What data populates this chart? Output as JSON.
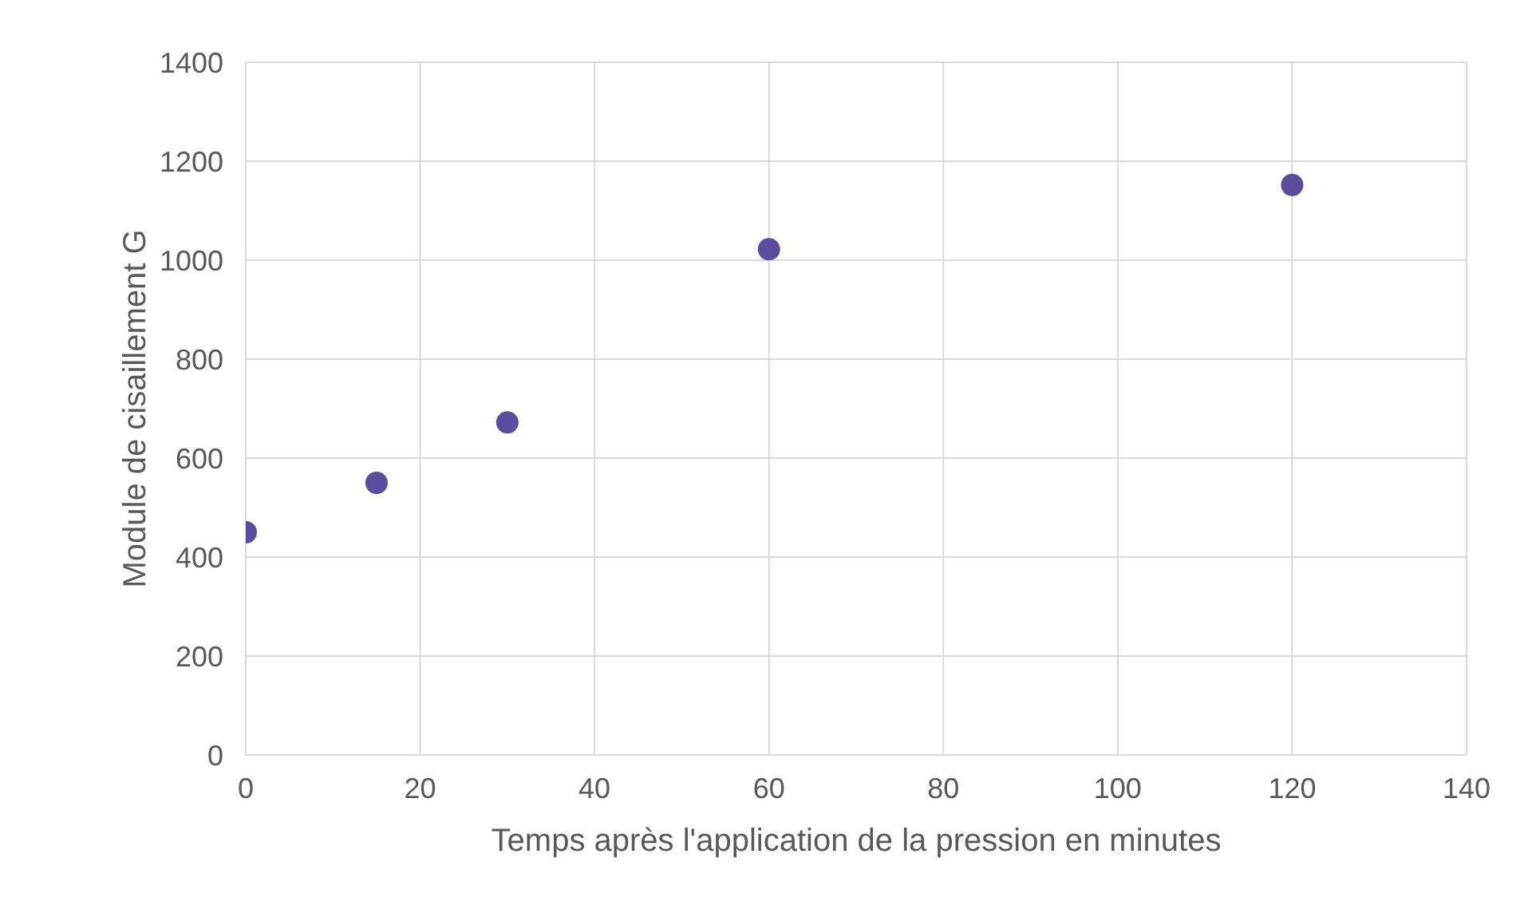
{
  "chart_data": {
    "type": "scatter",
    "xlabel": "Temps après l'application de la pression en minutes",
    "ylabel": "Module de cisaillement G",
    "x": [
      0,
      15,
      30,
      60,
      120
    ],
    "series": [
      {
        "color": "#5b4c9e",
        "values": [
          450,
          550,
          672,
          1022,
          1152
        ]
      }
    ],
    "xlim": [
      0,
      140
    ],
    "xticks": [
      0,
      20,
      40,
      60,
      80,
      100,
      120,
      140
    ],
    "ylim": [
      0,
      1400
    ],
    "yticks": [
      0,
      200,
      400,
      600,
      800,
      1000,
      1200,
      1400
    ],
    "grid": true,
    "marker": "circle",
    "legend": false
  }
}
